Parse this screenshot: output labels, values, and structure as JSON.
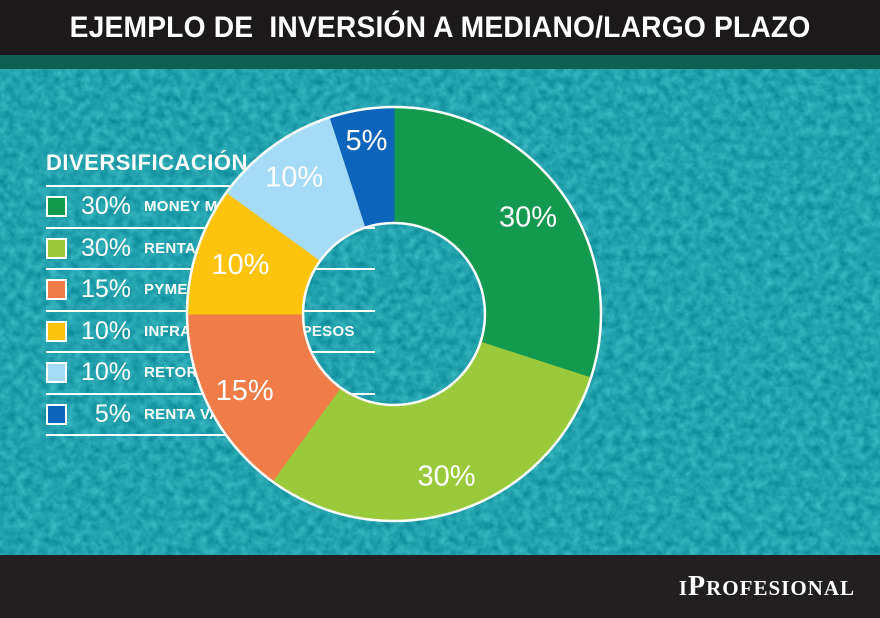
{
  "header": {
    "title": "EJEMPLO DE  INVERSIÓN A MEDIANO/LARGO PLAZO"
  },
  "legend": {
    "title": "DIVERSIFICACIÓN"
  },
  "footer": {
    "brand_prefix": "I",
    "brand_capital": "P",
    "brand_rest": "ROFESIONAL"
  },
  "colors": {
    "background_teal": "#0e8c9b",
    "background_texture_light": "#18aab5",
    "stripe_green": "#0d5f52",
    "header_bg": "#1b1919",
    "footer_bg": "#221f20",
    "text_white": "#ffffff",
    "chart_outline": "#ffffff"
  },
  "chart_data": {
    "type": "pie",
    "variant": "donut",
    "title": "DIVERSIFICACIÓN",
    "unit": "%",
    "start_angle_deg": 0,
    "direction": "clockwise",
    "hole_radius_frac": 0.4375,
    "outer_radius_px": 207,
    "legend_position": "left",
    "slices": [
      {
        "label": "MONEY MARKET",
        "value": 30,
        "pct_label": "30%",
        "color": "#149a4e",
        "label_r_frac": 0.8
      },
      {
        "label": "RENTA FIJA PESOS",
        "value": 30,
        "pct_label": "30%",
        "color": "#9aca3c",
        "label_r_frac": 0.82
      },
      {
        "label": "PYMES PESOS",
        "value": 15,
        "pct_label": "15%",
        "color": "#f07c48",
        "label_r_frac": 0.81
      },
      {
        "label": "INFRAESTRUCTURA PESOS",
        "value": 10,
        "pct_label": "10%",
        "color": "#fdc30d",
        "label_r_frac": 0.78
      },
      {
        "label": "RETORNO TOTAL",
        "value": 10,
        "pct_label": "10%",
        "color": "#a6dbf7",
        "label_r_frac": 0.82
      },
      {
        "label": "RENTA VARIABLE PESOS",
        "value": 5,
        "pct_label": "5%",
        "color": "#0c65ba",
        "label_r_frac": 0.85
      }
    ]
  }
}
